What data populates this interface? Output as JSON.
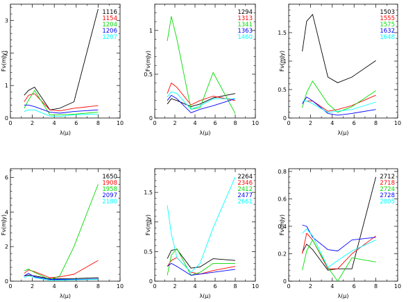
{
  "colors": {
    "black": "#000000",
    "red": "#ff0000",
    "green": "#00dd00",
    "blue": "#0000ff",
    "cyan": "#00ffff"
  },
  "chart_data": [
    {
      "type": "line",
      "xlabel": "λ(μ)",
      "ylabel": "Fν(mJy)",
      "xlim": [
        0,
        10
      ],
      "ylim": [
        0,
        3.5
      ],
      "xticks": [
        0,
        2,
        4,
        6,
        8,
        10
      ],
      "yticks": [
        0,
        1,
        2,
        3
      ],
      "legend_position": "top-right",
      "series": [
        {
          "name": "1116",
          "color": "#000000",
          "x": [
            1.25,
            1.65,
            2.2,
            3.6,
            4.5,
            5.8,
            8.0
          ],
          "y": [
            0.7,
            0.85,
            0.95,
            0.25,
            0.3,
            0.5,
            3.35
          ]
        },
        {
          "name": "1154",
          "color": "#ff0000",
          "x": [
            1.25,
            1.65,
            2.2,
            3.6,
            4.5,
            5.8,
            8.0
          ],
          "y": [
            0.5,
            0.7,
            0.75,
            0.25,
            0.22,
            0.3,
            0.38
          ]
        },
        {
          "name": "1204",
          "color": "#00dd00",
          "x": [
            1.25,
            1.65,
            2.2,
            3.6,
            4.5,
            5.8,
            8.0
          ],
          "y": [
            0.3,
            0.55,
            0.85,
            0.1,
            0.1,
            0.12,
            0.18
          ]
        },
        {
          "name": "1206",
          "color": "#0000ff",
          "x": [
            1.25,
            1.65,
            2.2,
            3.6,
            4.5,
            5.8,
            8.0
          ],
          "y": [
            0.4,
            0.4,
            0.35,
            0.18,
            0.15,
            0.2,
            0.25
          ]
        },
        {
          "name": "1207",
          "color": "#00ffff",
          "x": [
            1.25,
            1.65,
            2.2,
            3.6,
            4.5,
            5.8,
            8.0
          ],
          "y": [
            0.2,
            0.25,
            0.25,
            0.06,
            0.05,
            0.1,
            0.12
          ]
        }
      ]
    },
    {
      "type": "line",
      "xlabel": "λ(μ)",
      "ylabel": "Fν(mJy)",
      "xlim": [
        0,
        10
      ],
      "ylim": [
        0,
        1.3
      ],
      "xticks": [
        0,
        2,
        4,
        6,
        8,
        10
      ],
      "yticks": [
        0,
        0.5,
        1
      ],
      "legend_position": "top-right",
      "series": [
        {
          "name": "1294",
          "color": "#000000",
          "x": [
            1.25,
            1.65,
            2.2,
            3.6,
            4.5,
            5.8,
            8.0
          ],
          "y": [
            0.16,
            0.22,
            0.2,
            0.13,
            0.16,
            0.23,
            0.28
          ]
        },
        {
          "name": "1313",
          "color": "#ff0000",
          "x": [
            1.25,
            1.65,
            2.2,
            3.6,
            4.5,
            5.8,
            8.0
          ],
          "y": [
            0.28,
            0.4,
            0.35,
            0.15,
            0.2,
            0.25,
            0.2
          ]
        },
        {
          "name": "1341",
          "color": "#00dd00",
          "x": [
            1.25,
            1.65,
            2.2,
            3.6,
            4.5,
            5.8,
            8.0
          ],
          "y": [
            0.88,
            1.16,
            0.9,
            0.1,
            0.12,
            0.52,
            0.05
          ]
        },
        {
          "name": "1363",
          "color": "#0000ff",
          "x": [
            1.25,
            1.65,
            2.2,
            3.6,
            4.5,
            5.8,
            8.0
          ],
          "y": [
            0.2,
            0.26,
            0.22,
            0.06,
            0.1,
            0.14,
            0.22
          ]
        },
        {
          "name": "1460",
          "color": "#00ffff",
          "x": [
            1.25,
            1.65,
            2.2,
            3.6,
            4.5,
            5.8,
            8.0
          ],
          "y": [
            0.24,
            0.3,
            0.28,
            0.1,
            0.14,
            0.22,
            0.22
          ]
        }
      ]
    },
    {
      "type": "line",
      "xlabel": "λ(μ)",
      "ylabel": "Fν(mJy)",
      "xlim": [
        0,
        10
      ],
      "ylim": [
        0,
        2.0
      ],
      "xticks": [
        0,
        2,
        4,
        6,
        8,
        10
      ],
      "yticks": [
        0,
        0.5,
        1,
        1.5
      ],
      "legend_position": "top-right",
      "series": [
        {
          "name": "1503",
          "color": "#000000",
          "x": [
            1.25,
            1.65,
            2.2,
            3.6,
            4.5,
            5.8,
            8.0
          ],
          "y": [
            1.17,
            1.7,
            1.82,
            0.72,
            0.62,
            0.72,
            1.01
          ]
        },
        {
          "name": "1555",
          "color": "#ff0000",
          "x": [
            1.25,
            1.65,
            2.2,
            3.6,
            4.5,
            5.8,
            8.0
          ],
          "y": [
            0.3,
            0.3,
            0.3,
            0.12,
            0.15,
            0.22,
            0.4
          ]
        },
        {
          "name": "1575",
          "color": "#00dd00",
          "x": [
            1.25,
            1.65,
            2.2,
            3.6,
            4.5,
            5.8,
            8.0
          ],
          "y": [
            0.18,
            0.45,
            0.65,
            0.25,
            0.1,
            0.2,
            0.48
          ]
        },
        {
          "name": "1632",
          "color": "#0000ff",
          "x": [
            1.25,
            1.65,
            2.2,
            3.6,
            4.5,
            5.8,
            8.0
          ],
          "y": [
            0.25,
            0.37,
            0.3,
            0.08,
            0.05,
            0.08,
            0.15
          ]
        },
        {
          "name": "1648",
          "color": "#00ffff",
          "x": [
            1.25,
            1.65,
            2.2,
            3.6,
            4.5,
            5.8,
            8.0
          ],
          "y": [
            0.3,
            0.3,
            0.25,
            0.1,
            0.12,
            0.15,
            0.28
          ]
        }
      ]
    },
    {
      "type": "line",
      "xlabel": "λ(μ)",
      "ylabel": "Fν(mJy)",
      "xlim": [
        0,
        10
      ],
      "ylim": [
        0,
        6.5
      ],
      "xticks": [
        0,
        2,
        4,
        6,
        8,
        10
      ],
      "yticks": [
        0,
        2,
        4,
        6
      ],
      "legend_position": "top-right",
      "series": [
        {
          "name": "1650",
          "color": "#000000",
          "x": [
            1.25,
            1.65,
            2.2,
            3.6,
            4.5,
            5.8,
            8.0
          ],
          "y": [
            0.3,
            0.35,
            0.3,
            0.15,
            0.15,
            0.15,
            0.2
          ]
        },
        {
          "name": "1908",
          "color": "#ff0000",
          "x": [
            1.25,
            1.65,
            2.2,
            3.6,
            4.5,
            5.8,
            8.0
          ],
          "y": [
            0.45,
            0.65,
            0.55,
            0.2,
            0.25,
            0.4,
            1.2
          ]
        },
        {
          "name": "1958",
          "color": "#00dd00",
          "x": [
            1.25,
            1.65,
            2.2,
            3.6,
            4.5,
            5.8,
            8.0
          ],
          "y": [
            0.6,
            0.7,
            0.5,
            0.1,
            0.3,
            2.0,
            5.6
          ]
        },
        {
          "name": "2097",
          "color": "#0000ff",
          "x": [
            1.25,
            1.65,
            2.2,
            3.6,
            4.5,
            5.8,
            8.0
          ],
          "y": [
            0.3,
            0.45,
            0.25,
            0.1,
            0.1,
            0.1,
            0.12
          ]
        },
        {
          "name": "2180",
          "color": "#00ffff",
          "x": [
            1.25,
            1.65,
            2.2,
            3.6,
            4.5,
            5.8,
            8.0
          ],
          "y": [
            0.2,
            0.3,
            0.2,
            0.05,
            0.06,
            0.08,
            0.1
          ]
        }
      ]
    },
    {
      "type": "line",
      "xlabel": "λ(μ)",
      "ylabel": "Fν(mJy)",
      "xlim": [
        0,
        10
      ],
      "ylim": [
        0,
        1.9
      ],
      "xticks": [
        0,
        2,
        4,
        6,
        8,
        10
      ],
      "yticks": [
        0,
        0.5,
        1,
        1.5
      ],
      "legend_position": "top-right",
      "series": [
        {
          "name": "2264",
          "color": "#000000",
          "x": [
            1.25,
            1.65,
            2.2,
            3.6,
            4.5,
            5.8,
            8.0
          ],
          "y": [
            0.38,
            0.52,
            0.54,
            0.22,
            0.24,
            0.38,
            0.35
          ]
        },
        {
          "name": "2346",
          "color": "#ff0000",
          "x": [
            1.25,
            1.65,
            2.2,
            3.6,
            4.5,
            5.8,
            8.0
          ],
          "y": [
            0.25,
            0.35,
            0.4,
            0.15,
            0.12,
            0.18,
            0.25
          ]
        },
        {
          "name": "2412",
          "color": "#00dd00",
          "x": [
            1.25,
            1.65,
            2.2,
            3.6,
            4.5,
            5.8,
            8.0
          ],
          "y": [
            0.1,
            0.44,
            0.55,
            0.1,
            0.15,
            0.3,
            0.3
          ]
        },
        {
          "name": "2477",
          "color": "#0000ff",
          "x": [
            1.25,
            1.65,
            2.2,
            3.6,
            4.5,
            5.8,
            8.0
          ],
          "y": [
            0.25,
            0.3,
            0.25,
            0.1,
            0.12,
            0.15,
            0.2
          ]
        },
        {
          "name": "2661",
          "color": "#00ffff",
          "x": [
            1.25,
            1.65,
            2.2,
            3.6,
            4.5,
            5.8,
            8.0
          ],
          "y": [
            1.28,
            0.8,
            0.4,
            0.15,
            0.3,
            0.9,
            1.76
          ]
        }
      ]
    },
    {
      "type": "line",
      "xlabel": "λ(μ)",
      "ylabel": "Fν(mJy)",
      "xlim": [
        0,
        10
      ],
      "ylim": [
        0,
        0.82
      ],
      "xticks": [
        0,
        2,
        4,
        6,
        8,
        10
      ],
      "yticks": [
        0,
        0.2,
        0.4,
        0.6,
        0.8
      ],
      "legend_position": "top-right",
      "series": [
        {
          "name": "2712",
          "color": "#000000",
          "x": [
            1.25,
            1.65,
            2.2,
            3.6,
            4.5,
            5.8,
            8.0
          ],
          "y": [
            0.21,
            0.27,
            0.23,
            0.08,
            0.09,
            0.09,
            0.76
          ]
        },
        {
          "name": "2718",
          "color": "#ff0000",
          "x": [
            1.25,
            1.65,
            2.2,
            3.6,
            4.5,
            5.8,
            8.0
          ],
          "y": [
            0.2,
            0.35,
            0.3,
            0.09,
            0.09,
            0.2,
            0.33
          ]
        },
        {
          "name": "2724",
          "color": "#00dd00",
          "x": [
            1.25,
            1.65,
            2.2,
            3.6,
            4.5,
            5.8,
            8.0
          ],
          "y": [
            0.08,
            0.22,
            0.3,
            0.1,
            0.0,
            0.17,
            0.14
          ]
        },
        {
          "name": "2728",
          "color": "#0000ff",
          "x": [
            1.25,
            1.65,
            2.2,
            3.6,
            4.5,
            5.8,
            8.0
          ],
          "y": [
            0.41,
            0.4,
            0.32,
            0.23,
            0.22,
            0.3,
            0.32
          ]
        },
        {
          "name": "2805",
          "color": "#00ffff",
          "x": [
            1.25,
            1.65,
            2.2,
            3.6,
            4.5,
            5.8,
            8.0
          ],
          "y": [
            0.35,
            0.38,
            0.33,
            0.1,
            0.15,
            0.22,
            0.3
          ]
        }
      ]
    }
  ]
}
